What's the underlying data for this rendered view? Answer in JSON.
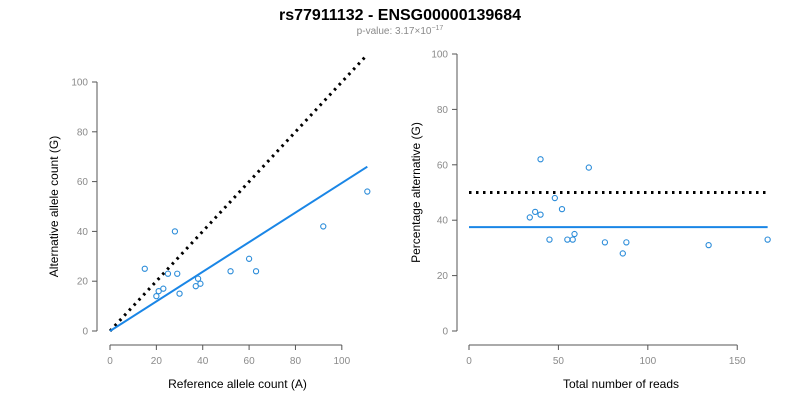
{
  "title": "rs77911132 - ENSG00000139684",
  "subtitle_prefix": "p-value: 3.17×10",
  "subtitle_exponent": "−17",
  "colors": {
    "points": "#2b8cd9",
    "fit_line": "#1a86e6",
    "reference_line": "#000000"
  },
  "chart_data": [
    {
      "type": "scatter",
      "xlabel": "Reference allele count (A)",
      "ylabel": "Alternative allele count (G)",
      "xlim": [
        0,
        110
      ],
      "ylim": [
        0,
        100
      ],
      "xticks": [
        0,
        20,
        40,
        60,
        80,
        100
      ],
      "yticks": [
        0,
        20,
        40,
        60,
        80,
        100
      ],
      "points": [
        [
          15,
          25
        ],
        [
          20,
          14
        ],
        [
          21,
          16
        ],
        [
          23,
          17
        ],
        [
          25,
          23
        ],
        [
          28,
          40
        ],
        [
          29,
          23
        ],
        [
          30,
          15
        ],
        [
          37,
          18
        ],
        [
          38,
          21
        ],
        [
          39,
          19
        ],
        [
          52,
          24
        ],
        [
          60,
          29
        ],
        [
          63,
          24
        ],
        [
          92,
          42
        ],
        [
          111,
          56
        ]
      ],
      "fit_line": [
        [
          0,
          0
        ],
        [
          111,
          66
        ]
      ],
      "reference_line": [
        [
          0,
          0
        ],
        [
          111,
          111
        ]
      ]
    },
    {
      "type": "scatter",
      "xlabel": "Total number of reads",
      "ylabel": "Percentage alternative (G)",
      "xlim": [
        0,
        170
      ],
      "ylim": [
        0,
        100
      ],
      "xticks": [
        0,
        50,
        100,
        150
      ],
      "yticks": [
        0,
        20,
        40,
        60,
        80,
        100
      ],
      "points": [
        [
          34,
          41
        ],
        [
          37,
          43
        ],
        [
          40,
          62
        ],
        [
          40,
          42
        ],
        [
          45,
          33
        ],
        [
          48,
          48
        ],
        [
          52,
          44
        ],
        [
          55,
          33
        ],
        [
          58,
          33
        ],
        [
          59,
          35
        ],
        [
          67,
          59
        ],
        [
          76,
          32
        ],
        [
          86,
          28
        ],
        [
          88,
          32
        ],
        [
          134,
          31
        ],
        [
          167,
          33
        ]
      ],
      "fit_line": [
        [
          0,
          37.5
        ],
        [
          167,
          37.5
        ]
      ],
      "reference_line": [
        [
          0,
          50
        ],
        [
          167,
          50
        ]
      ]
    }
  ]
}
